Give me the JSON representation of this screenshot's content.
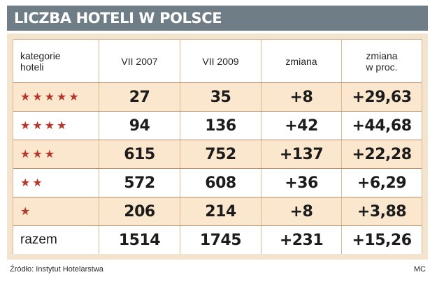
{
  "title": "LICZBA HOTELI W POLSCE",
  "footer": {
    "source": "Źródło: Instytut Hotelarstwa",
    "author": "MC"
  },
  "colors": {
    "title_bar": "#6f7e86",
    "panel_background": "#f3e4cf",
    "row_shade": "#fbe7cd",
    "star_color": "#b5372a"
  },
  "chart_data": {
    "type": "table",
    "title": "LICZBA HOTELI W POLSCE",
    "columns": [
      "kategorie\nhoteli",
      "VII 2007",
      "VII 2009",
      "zmiana",
      "zmiana\nw proc."
    ],
    "rows": [
      {
        "category_stars": 5,
        "category_label": "",
        "values": [
          "27",
          "35",
          "+8",
          "+29,63"
        ]
      },
      {
        "category_stars": 4,
        "category_label": "",
        "values": [
          "94",
          "136",
          "+42",
          "+44,68"
        ]
      },
      {
        "category_stars": 3,
        "category_label": "",
        "values": [
          "615",
          "752",
          "+137",
          "+22,28"
        ]
      },
      {
        "category_stars": 2,
        "category_label": "",
        "values": [
          "572",
          "608",
          "+36",
          "+6,29"
        ]
      },
      {
        "category_stars": 1,
        "category_label": "",
        "values": [
          "206",
          "214",
          "+8",
          "+3,88"
        ]
      },
      {
        "category_stars": 0,
        "category_label": "razem",
        "values": [
          "1514",
          "1745",
          "+231",
          "+15,26"
        ]
      }
    ]
  }
}
